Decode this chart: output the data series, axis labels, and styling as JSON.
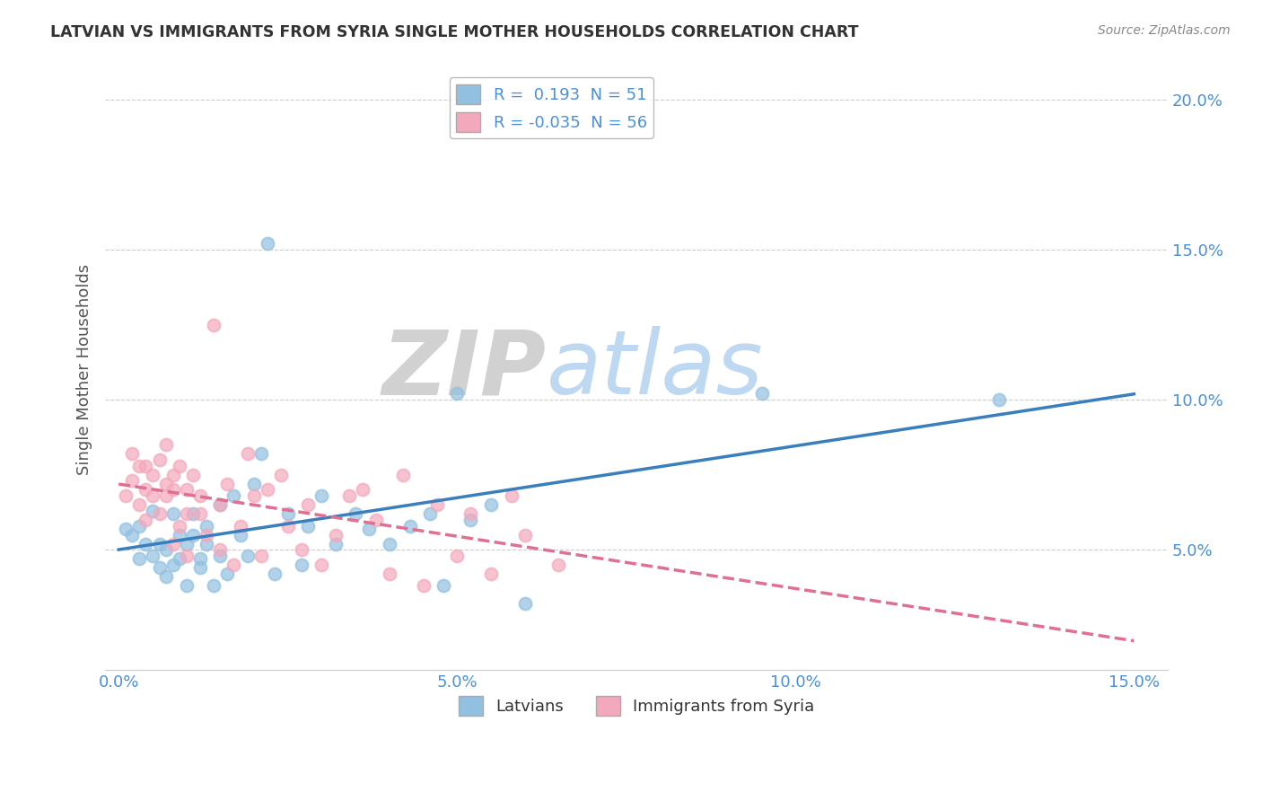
{
  "title": "LATVIAN VS IMMIGRANTS FROM SYRIA SINGLE MOTHER HOUSEHOLDS CORRELATION CHART",
  "source": "Source: ZipAtlas.com",
  "ylabel": "Single Mother Households",
  "xlabel_latvians": "Latvians",
  "xlabel_syria": "Immigrants from Syria",
  "xlim": [
    -0.002,
    0.155
  ],
  "ylim": [
    0.01,
    0.21
  ],
  "xticks": [
    0.0,
    0.05,
    0.1,
    0.15
  ],
  "xticklabels": [
    "0.0%",
    "5.0%",
    "10.0%",
    "15.0%"
  ],
  "yticks": [
    0.05,
    0.1,
    0.15,
    0.2
  ],
  "yticklabels": [
    "5.0%",
    "10.0%",
    "15.0%",
    "20.0%"
  ],
  "latvian_color": "#92c0e0",
  "syria_color": "#f4a8bb",
  "latvian_line_color": "#3a7fbd",
  "syria_line_color": "#e07090",
  "latvian_R": 0.193,
  "latvian_N": 51,
  "syria_R": -0.035,
  "syria_N": 56,
  "latvian_scatter": [
    [
      0.001,
      0.057
    ],
    [
      0.002,
      0.055
    ],
    [
      0.003,
      0.058
    ],
    [
      0.003,
      0.047
    ],
    [
      0.004,
      0.052
    ],
    [
      0.005,
      0.048
    ],
    [
      0.005,
      0.063
    ],
    [
      0.006,
      0.044
    ],
    [
      0.006,
      0.052
    ],
    [
      0.007,
      0.041
    ],
    [
      0.007,
      0.05
    ],
    [
      0.008,
      0.062
    ],
    [
      0.008,
      0.045
    ],
    [
      0.009,
      0.055
    ],
    [
      0.009,
      0.047
    ],
    [
      0.01,
      0.052
    ],
    [
      0.01,
      0.038
    ],
    [
      0.011,
      0.055
    ],
    [
      0.011,
      0.062
    ],
    [
      0.012,
      0.047
    ],
    [
      0.012,
      0.044
    ],
    [
      0.013,
      0.058
    ],
    [
      0.013,
      0.052
    ],
    [
      0.014,
      0.038
    ],
    [
      0.015,
      0.048
    ],
    [
      0.015,
      0.065
    ],
    [
      0.016,
      0.042
    ],
    [
      0.017,
      0.068
    ],
    [
      0.018,
      0.055
    ],
    [
      0.019,
      0.048
    ],
    [
      0.02,
      0.072
    ],
    [
      0.021,
      0.082
    ],
    [
      0.022,
      0.152
    ],
    [
      0.023,
      0.042
    ],
    [
      0.025,
      0.062
    ],
    [
      0.027,
      0.045
    ],
    [
      0.028,
      0.058
    ],
    [
      0.03,
      0.068
    ],
    [
      0.032,
      0.052
    ],
    [
      0.035,
      0.062
    ],
    [
      0.037,
      0.057
    ],
    [
      0.04,
      0.052
    ],
    [
      0.043,
      0.058
    ],
    [
      0.046,
      0.062
    ],
    [
      0.048,
      0.038
    ],
    [
      0.05,
      0.102
    ],
    [
      0.052,
      0.06
    ],
    [
      0.055,
      0.065
    ],
    [
      0.06,
      0.032
    ],
    [
      0.095,
      0.102
    ],
    [
      0.13,
      0.1
    ]
  ],
  "syria_scatter": [
    [
      0.001,
      0.068
    ],
    [
      0.002,
      0.073
    ],
    [
      0.002,
      0.082
    ],
    [
      0.003,
      0.065
    ],
    [
      0.003,
      0.078
    ],
    [
      0.004,
      0.07
    ],
    [
      0.004,
      0.078
    ],
    [
      0.004,
      0.06
    ],
    [
      0.005,
      0.075
    ],
    [
      0.005,
      0.068
    ],
    [
      0.006,
      0.08
    ],
    [
      0.006,
      0.062
    ],
    [
      0.007,
      0.072
    ],
    [
      0.007,
      0.085
    ],
    [
      0.007,
      0.068
    ],
    [
      0.008,
      0.075
    ],
    [
      0.008,
      0.052
    ],
    [
      0.008,
      0.07
    ],
    [
      0.009,
      0.058
    ],
    [
      0.009,
      0.078
    ],
    [
      0.01,
      0.062
    ],
    [
      0.01,
      0.07
    ],
    [
      0.01,
      0.048
    ],
    [
      0.011,
      0.075
    ],
    [
      0.012,
      0.062
    ],
    [
      0.012,
      0.068
    ],
    [
      0.013,
      0.055
    ],
    [
      0.014,
      0.125
    ],
    [
      0.015,
      0.05
    ],
    [
      0.015,
      0.065
    ],
    [
      0.016,
      0.072
    ],
    [
      0.017,
      0.045
    ],
    [
      0.018,
      0.058
    ],
    [
      0.019,
      0.082
    ],
    [
      0.02,
      0.068
    ],
    [
      0.021,
      0.048
    ],
    [
      0.022,
      0.07
    ],
    [
      0.024,
      0.075
    ],
    [
      0.025,
      0.058
    ],
    [
      0.027,
      0.05
    ],
    [
      0.028,
      0.065
    ],
    [
      0.03,
      0.045
    ],
    [
      0.032,
      0.055
    ],
    [
      0.034,
      0.068
    ],
    [
      0.036,
      0.07
    ],
    [
      0.038,
      0.06
    ],
    [
      0.04,
      0.042
    ],
    [
      0.042,
      0.075
    ],
    [
      0.045,
      0.038
    ],
    [
      0.047,
      0.065
    ],
    [
      0.05,
      0.048
    ],
    [
      0.052,
      0.062
    ],
    [
      0.055,
      0.042
    ],
    [
      0.058,
      0.068
    ],
    [
      0.06,
      0.055
    ],
    [
      0.065,
      0.045
    ]
  ],
  "background_color": "#ffffff",
  "grid_color": "#cccccc",
  "title_color": "#333333",
  "axis_label_color": "#555555",
  "tick_color": "#4a90d9"
}
